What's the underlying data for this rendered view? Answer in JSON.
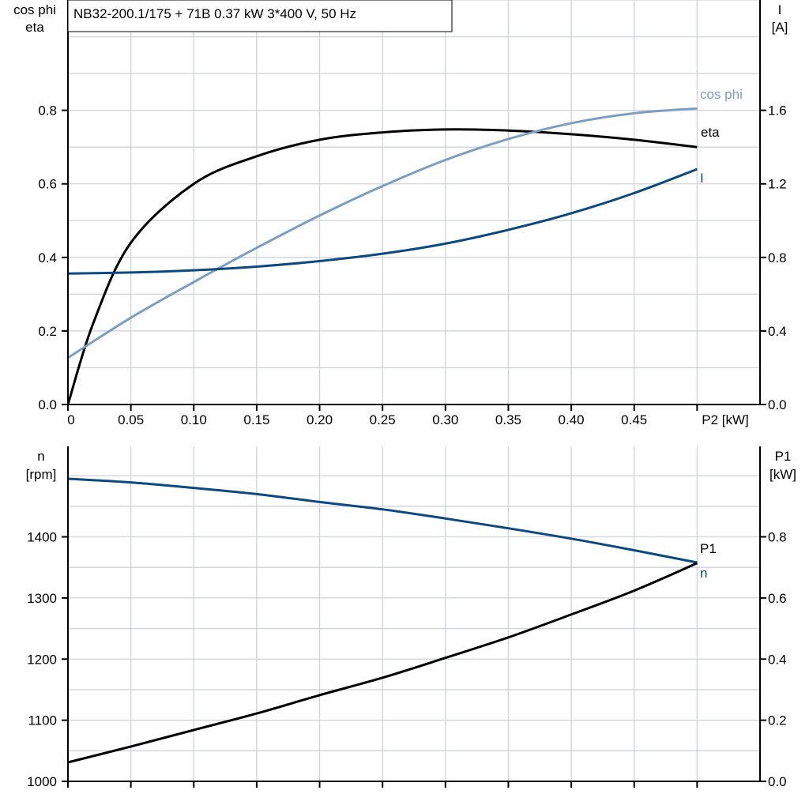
{
  "title": "NB32-200.1/175 + 71B   0.37 kW   3*400 V, 50 Hz",
  "colors": {
    "eta": "#000000",
    "cos_phi": "#7a9fc2",
    "I": "#0b4a80",
    "n": "#0b4a80",
    "P1": "#000000"
  },
  "chart_data": [
    {
      "type": "line",
      "xlabel": "P2 [kW]",
      "xlim": [
        0,
        0.55
      ],
      "xticks": [
        "0",
        "0.05",
        "0.10",
        "0.15",
        "0.20",
        "0.25",
        "0.30",
        "0.35",
        "0.40",
        "0.45"
      ],
      "xtick_values": [
        0,
        0.05,
        0.1,
        0.15,
        0.2,
        0.25,
        0.3,
        0.35,
        0.4,
        0.45
      ],
      "ylabel_left": [
        "cos phi",
        "eta"
      ],
      "ylim_left": [
        0,
        1.1
      ],
      "yticks_left": [
        "0.0",
        "0.2",
        "0.4",
        "0.6",
        "0.8"
      ],
      "ylabel_right": [
        "I",
        "[A]"
      ],
      "ylim_right": [
        0,
        2.2
      ],
      "yticks_right": [
        "0.0",
        "0.4",
        "0.8",
        "1.2",
        "1.6"
      ],
      "grid": true,
      "series": [
        {
          "name": "eta",
          "axis": "left",
          "color": "#000000",
          "x": [
            0,
            0.02,
            0.05,
            0.1,
            0.15,
            0.2,
            0.25,
            0.3,
            0.35,
            0.4,
            0.45,
            0.5
          ],
          "y": [
            0,
            0.22,
            0.44,
            0.6,
            0.675,
            0.72,
            0.74,
            0.748,
            0.745,
            0.735,
            0.72,
            0.7
          ]
        },
        {
          "name": "cos phi",
          "axis": "left",
          "color": "#7a9fc2",
          "x": [
            0,
            0.05,
            0.1,
            0.15,
            0.2,
            0.25,
            0.3,
            0.35,
            0.4,
            0.45,
            0.5
          ],
          "y": [
            0.127,
            0.236,
            0.333,
            0.426,
            0.514,
            0.594,
            0.665,
            0.722,
            0.765,
            0.792,
            0.805
          ]
        },
        {
          "name": "I",
          "axis": "right",
          "color": "#0b4a80",
          "x": [
            0,
            0.05,
            0.1,
            0.15,
            0.2,
            0.25,
            0.3,
            0.35,
            0.4,
            0.45,
            0.5
          ],
          "y": [
            0.712,
            0.718,
            0.73,
            0.75,
            0.78,
            0.82,
            0.875,
            0.95,
            1.04,
            1.15,
            1.28
          ]
        }
      ]
    },
    {
      "type": "line",
      "xlim": [
        0,
        0.55
      ],
      "ylabel_left": [
        "n",
        "[rpm]"
      ],
      "ylim_left": [
        1000,
        1548
      ],
      "yticks_left": [
        "1000",
        "1100",
        "1200",
        "1300",
        "1400"
      ],
      "ylabel_right": [
        "P1",
        "[kW]"
      ],
      "ylim_right": [
        0,
        1.096
      ],
      "yticks_right": [
        "0.0",
        "0.2",
        "0.4",
        "0.6",
        "0.8"
      ],
      "grid": true,
      "series": [
        {
          "name": "n",
          "axis": "left",
          "color": "#0b4a80",
          "x": [
            0,
            0.05,
            0.1,
            0.15,
            0.2,
            0.25,
            0.3,
            0.35,
            0.4,
            0.45,
            0.5
          ],
          "y": [
            1495,
            1489,
            1480,
            1470,
            1457,
            1445,
            1430,
            1414,
            1397,
            1378,
            1358
          ]
        },
        {
          "name": "P1",
          "axis": "right",
          "color": "#000000",
          "x": [
            0,
            0.05,
            0.1,
            0.15,
            0.2,
            0.25,
            0.3,
            0.35,
            0.4,
            0.45,
            0.5
          ],
          "y": [
            0.062,
            0.114,
            0.168,
            0.222,
            0.282,
            0.339,
            0.404,
            0.471,
            0.546,
            0.624,
            0.714
          ]
        }
      ]
    }
  ]
}
